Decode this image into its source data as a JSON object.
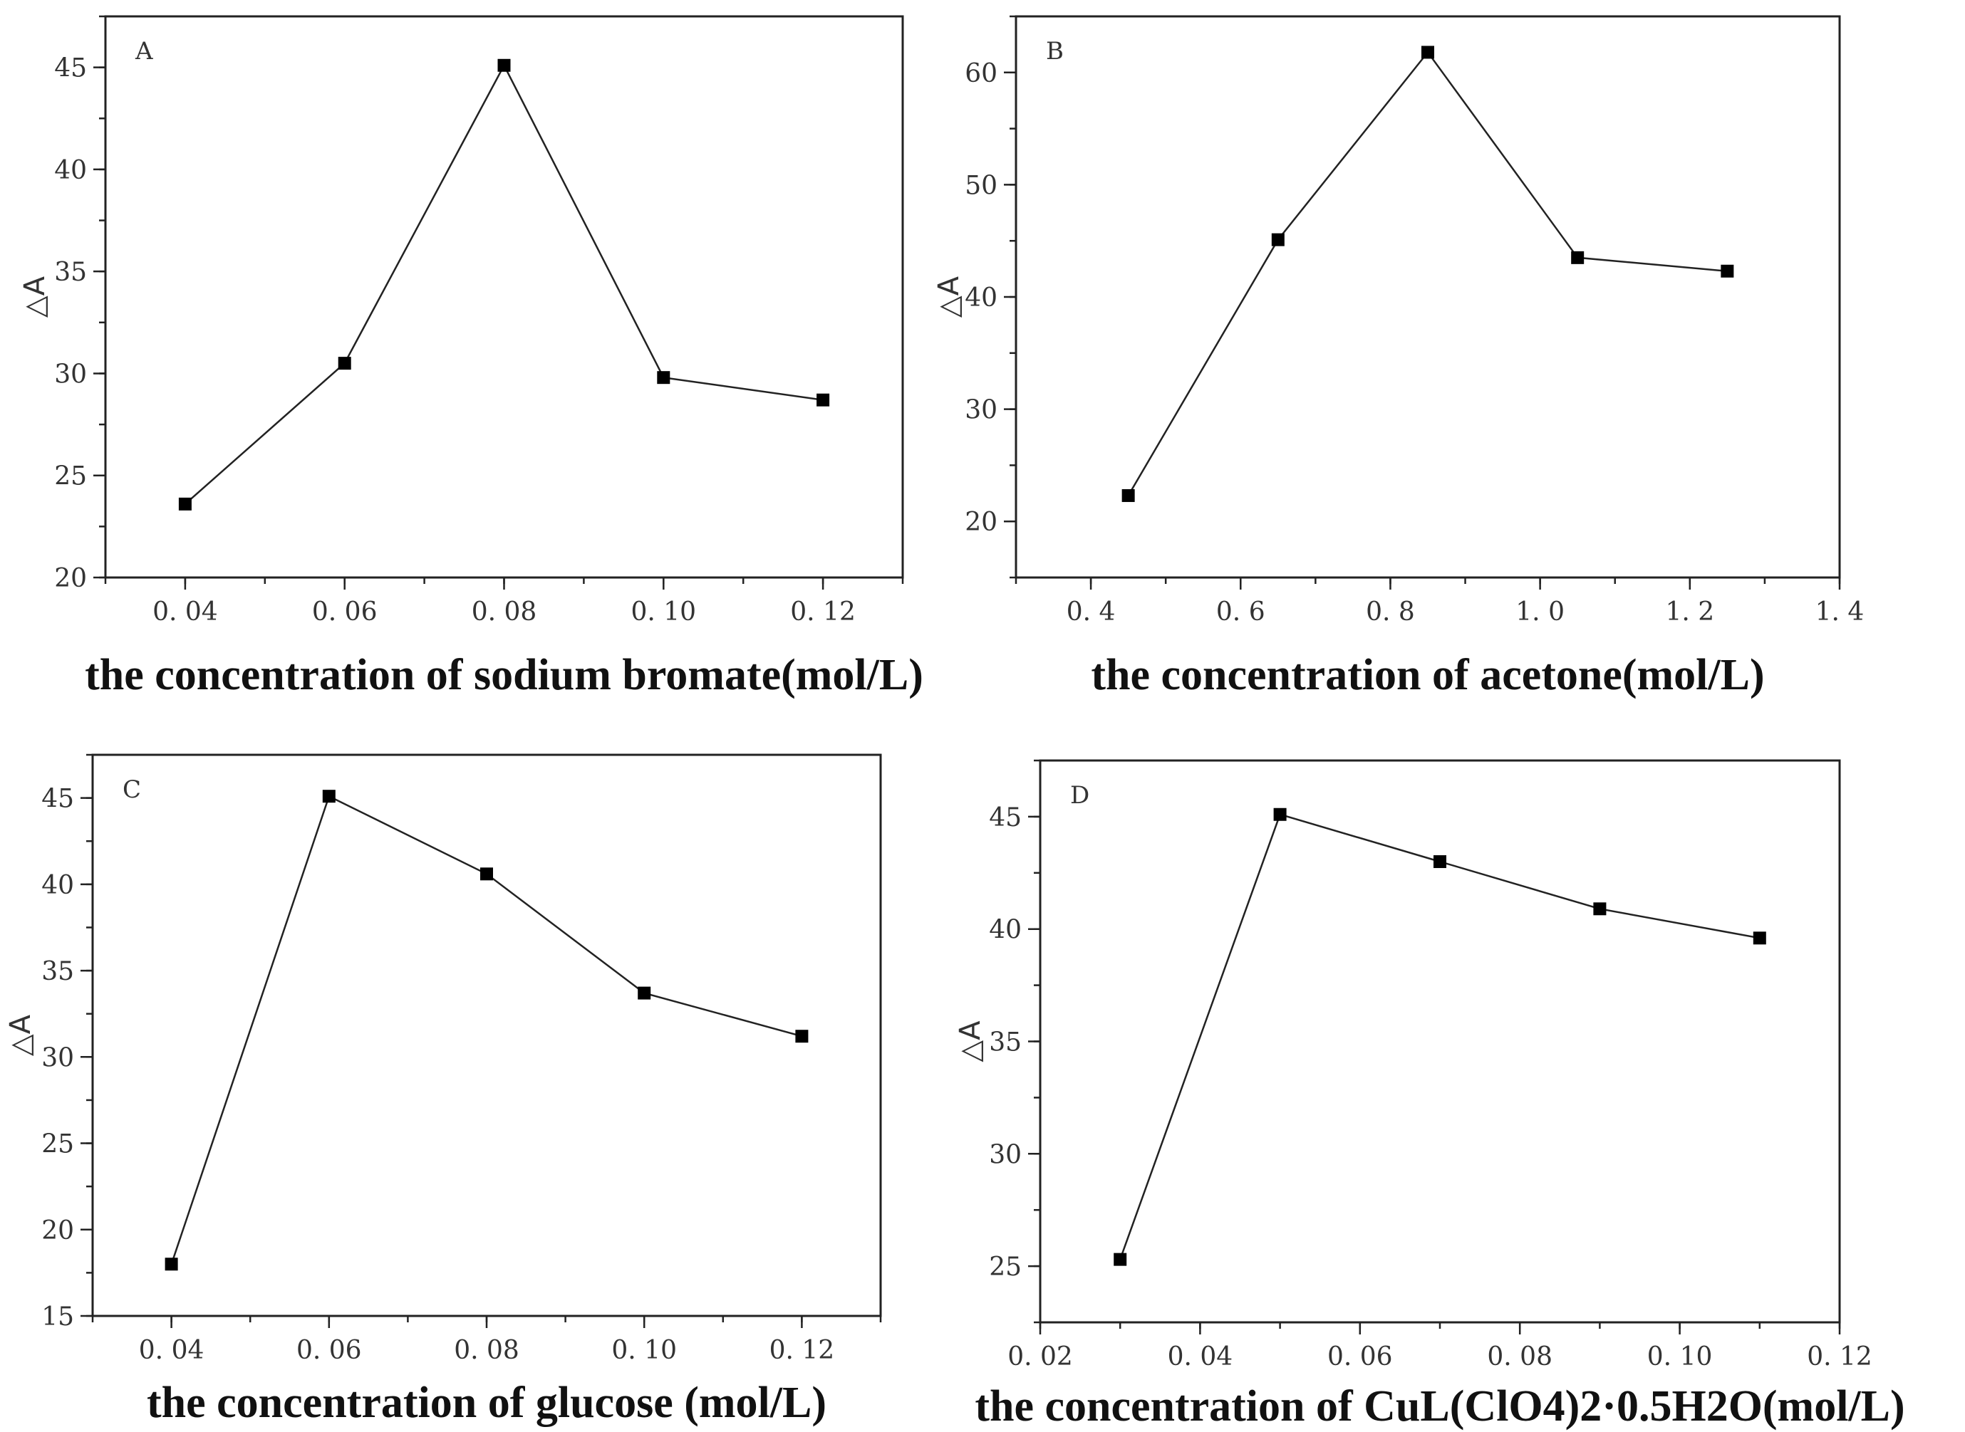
{
  "chart_data": [
    {
      "type": "line",
      "panel_label": "A",
      "ylabel": "△A",
      "xlabel": "the concentration of sodium bromate(mol/L)",
      "xlim": [
        0.03,
        0.13
      ],
      "ylim": [
        20,
        47.5
      ],
      "x_ticks": [
        0.04,
        0.06,
        0.08,
        0.1,
        0.12
      ],
      "x_tick_labels": [
        "0. 04",
        "0. 06",
        "0. 08",
        "0. 10",
        "0. 12"
      ],
      "y_ticks": [
        20,
        25,
        30,
        35,
        40,
        45
      ],
      "y_tick_labels": [
        "20",
        "25",
        "30",
        "35",
        "40",
        "45"
      ],
      "x_minor_step": 0.01,
      "y_minor_step": 2.5,
      "grid": false,
      "legend": "none",
      "series": [
        {
          "x": [
            0.04,
            0.06,
            0.08,
            0.1,
            0.12
          ],
          "y": [
            23.6,
            30.5,
            45.1,
            29.8,
            28.7
          ]
        }
      ]
    },
    {
      "type": "line",
      "panel_label": "B",
      "ylabel": "△A",
      "xlabel": "the concentration of acetone(mol/L)",
      "xlim": [
        0.3,
        1.4
      ],
      "ylim": [
        15,
        65
      ],
      "x_ticks": [
        0.4,
        0.6,
        0.8,
        1.0,
        1.2,
        1.4
      ],
      "x_tick_labels": [
        "0. 4",
        "0. 6",
        "0. 8",
        "1. 0",
        "1. 2",
        "1. 4"
      ],
      "y_ticks": [
        20,
        30,
        40,
        50,
        60
      ],
      "y_tick_labels": [
        "20",
        "30",
        "40",
        "50",
        "60"
      ],
      "x_minor_step": 0.1,
      "y_minor_step": 5,
      "grid": false,
      "legend": "none",
      "series": [
        {
          "x": [
            0.45,
            0.65,
            0.85,
            1.05,
            1.25
          ],
          "y": [
            22.3,
            45.1,
            61.8,
            43.5,
            42.3
          ]
        }
      ]
    },
    {
      "type": "line",
      "panel_label": "C",
      "ylabel": "△A",
      "xlabel": "the concentration of glucose (mol/L)",
      "xlim": [
        0.03,
        0.13
      ],
      "ylim": [
        15,
        47.5
      ],
      "x_ticks": [
        0.04,
        0.06,
        0.08,
        0.1,
        0.12
      ],
      "x_tick_labels": [
        "0. 04",
        "0. 06",
        "0. 08",
        "0. 10",
        "0. 12"
      ],
      "y_ticks": [
        15,
        20,
        25,
        30,
        35,
        40,
        45
      ],
      "y_tick_labels": [
        "15",
        "20",
        "25",
        "30",
        "35",
        "40",
        "45"
      ],
      "x_minor_step": 0.01,
      "y_minor_step": 2.5,
      "grid": false,
      "legend": "none",
      "series": [
        {
          "x": [
            0.04,
            0.06,
            0.08,
            0.1,
            0.12
          ],
          "y": [
            18.0,
            45.1,
            40.6,
            33.7,
            31.2
          ]
        }
      ]
    },
    {
      "type": "line",
      "panel_label": "D",
      "ylabel": "△A",
      "xlabel": "the concentration of CuL(ClO4)2·0.5H2O(mol/L)",
      "xlim": [
        0.02,
        0.12
      ],
      "ylim": [
        22.5,
        47.5
      ],
      "x_ticks": [
        0.02,
        0.04,
        0.06,
        0.08,
        0.1,
        0.12
      ],
      "x_tick_labels": [
        "0. 02",
        "0. 04",
        "0. 06",
        "0. 08",
        "0. 10",
        "0. 12"
      ],
      "y_ticks": [
        25,
        30,
        35,
        40,
        45
      ],
      "y_tick_labels": [
        "25",
        "30",
        "35",
        "40",
        "45"
      ],
      "x_minor_step": 0.01,
      "y_minor_step": 2.5,
      "grid": false,
      "legend": "none",
      "series": [
        {
          "x": [
            0.03,
            0.05,
            0.07,
            0.09,
            0.11
          ],
          "y": [
            25.3,
            45.1,
            43.0,
            40.9,
            39.6
          ]
        }
      ]
    }
  ]
}
